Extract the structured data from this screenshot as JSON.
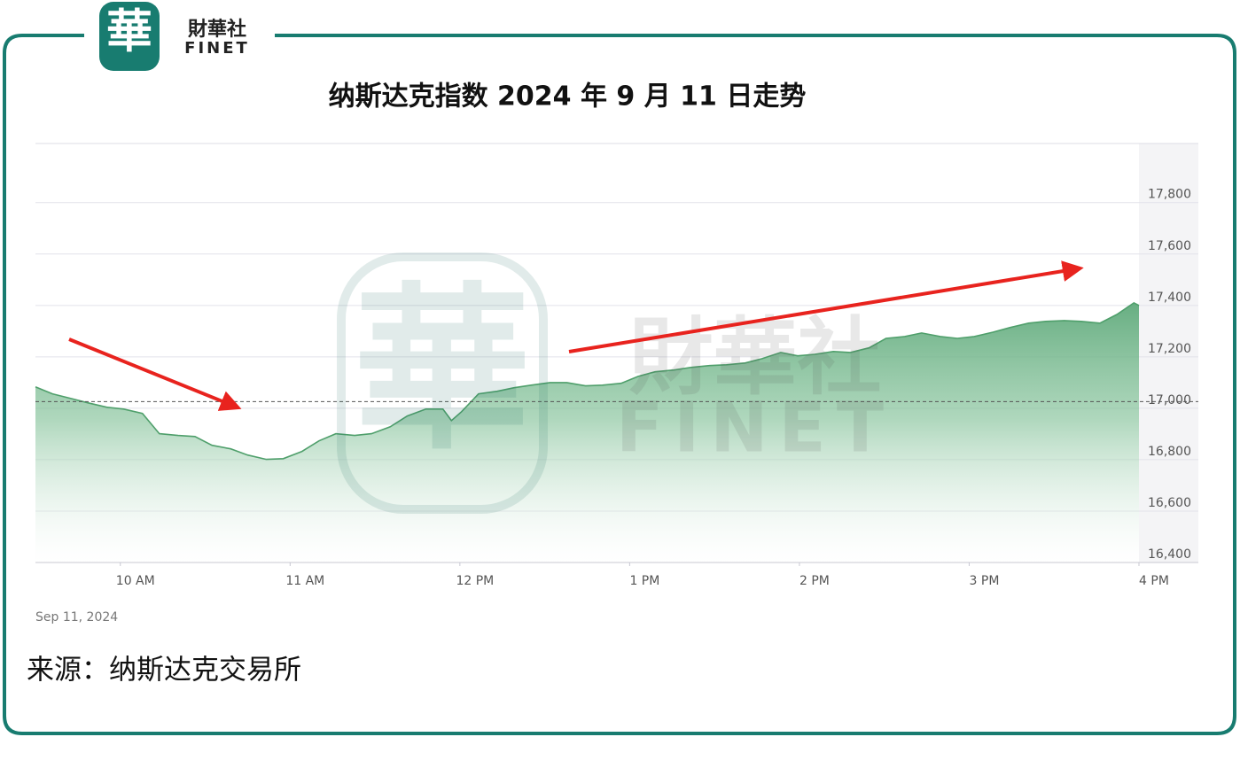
{
  "logo": {
    "mark": "華",
    "name": "財華社",
    "latin": "FINET"
  },
  "source": "来源：纳斯达克交易所",
  "chart_data": {
    "type": "area",
    "title": "纳斯达克指数 2024 年 9 月 11 日走势",
    "date_label": "Sep 11, 2024",
    "color": "#4f9f6b",
    "grid": true,
    "xlim": [
      9.5,
      16
    ],
    "ylim": [
      16400,
      18030
    ],
    "xticks": [
      {
        "value": 10,
        "label": "10 AM"
      },
      {
        "value": 11,
        "label": "11 AM"
      },
      {
        "value": 12,
        "label": "12 PM"
      },
      {
        "value": 13,
        "label": "1 PM"
      },
      {
        "value": 14,
        "label": "2 PM"
      },
      {
        "value": 15,
        "label": "3 PM"
      },
      {
        "value": 16,
        "label": "4 PM"
      }
    ],
    "yticks": [
      {
        "value": 16400,
        "label": "16,400"
      },
      {
        "value": 16600,
        "label": "16,600"
      },
      {
        "value": 16800,
        "label": "16,800"
      },
      {
        "value": 17000,
        "label": "17,000"
      },
      {
        "value": 17200,
        "label": "17,200"
      },
      {
        "value": 17400,
        "label": "17,400"
      },
      {
        "value": 17600,
        "label": "17,600"
      },
      {
        "value": 17800,
        "label": "17,800"
      }
    ],
    "reference_line": 17026,
    "x": [
      9.5,
      9.6,
      9.71,
      9.81,
      9.92,
      10.02,
      10.13,
      10.23,
      10.34,
      10.44,
      10.54,
      10.65,
      10.75,
      10.86,
      10.96,
      11.07,
      11.17,
      11.27,
      11.38,
      11.48,
      11.59,
      11.69,
      11.8,
      11.9,
      11.95,
      12.01,
      12.11,
      12.22,
      12.32,
      12.42,
      12.53,
      12.63,
      12.74,
      12.84,
      12.95,
      13.05,
      13.15,
      13.26,
      13.36,
      13.47,
      13.57,
      13.68,
      13.78,
      13.89,
      13.99,
      14.09,
      14.2,
      14.3,
      14.41,
      14.51,
      14.62,
      14.72,
      14.83,
      14.93,
      15.03,
      15.14,
      15.24,
      15.35,
      15.45,
      15.56,
      15.66,
      15.77,
      15.87,
      15.97,
      16.0
    ],
    "values": [
      17083,
      17056,
      17038,
      17021,
      17004,
      16997,
      16980,
      16901,
      16894,
      16890,
      16856,
      16842,
      16818,
      16801,
      16804,
      16832,
      16873,
      16901,
      16894,
      16901,
      16928,
      16970,
      16997,
      16997,
      16952,
      16987,
      17056,
      17066,
      17080,
      17090,
      17100,
      17100,
      17087,
      17090,
      17097,
      17124,
      17142,
      17149,
      17159,
      17166,
      17169,
      17176,
      17193,
      17217,
      17204,
      17210,
      17221,
      17217,
      17235,
      17272,
      17279,
      17293,
      17279,
      17272,
      17279,
      17296,
      17314,
      17331,
      17338,
      17341,
      17338,
      17331,
      17365,
      17410,
      17400
    ]
  }
}
